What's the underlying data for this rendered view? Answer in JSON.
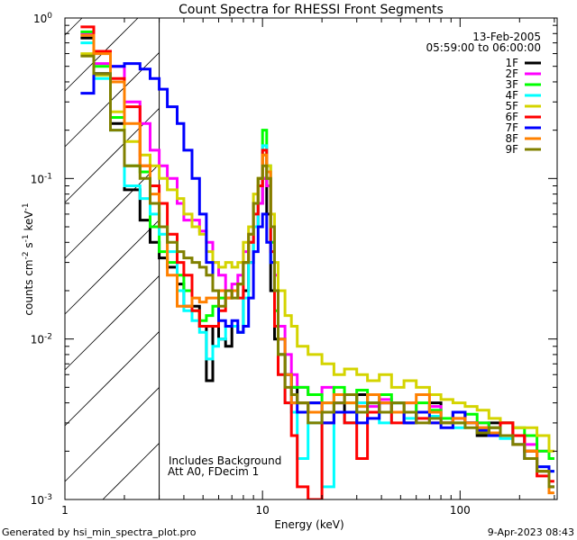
{
  "chart_data": {
    "type": "line",
    "title": "Count Spectra for RHESSI Front Segments",
    "xlabel": "Energy (keV)",
    "ylabel": {
      "base": "counts cm",
      "exp1": "-2",
      "mid1": " s",
      "exp2": "-1",
      "mid2": " keV",
      "exp3": "-1"
    },
    "xscale": "log",
    "yscale": "log",
    "xlim": [
      1,
      310
    ],
    "ylim": [
      0.001,
      1
    ],
    "x_ticks": [
      {
        "value": 1,
        "label": "1"
      },
      {
        "value": 10,
        "label": "10"
      },
      {
        "value": 100,
        "label": "100"
      }
    ],
    "y_ticks": [
      {
        "value": 1,
        "base": "10",
        "exp": "0"
      },
      {
        "value": 0.1,
        "base": "10",
        "exp": "-1"
      },
      {
        "value": 0.01,
        "base": "10",
        "exp": "-2"
      },
      {
        "value": 0.001,
        "base": "10",
        "exp": "-3"
      }
    ],
    "excluded_region_max_kev": 3,
    "date": "13-Feb-2005",
    "time_range": "05:59:00 to 06:00:00",
    "annotations": [
      "Includes Background",
      "Att A0, FDecim 1"
    ],
    "legend_position": "top-right",
    "bin_edges": [
      1.2,
      1.4,
      1.7,
      2.0,
      2.4,
      2.7,
      3.0,
      3.3,
      3.7,
      4.0,
      4.4,
      4.8,
      5.2,
      5.6,
      6.0,
      6.5,
      7.0,
      7.5,
      8.0,
      8.5,
      9.0,
      9.5,
      10.0,
      10.5,
      11.0,
      11.5,
      12.0,
      13,
      14,
      15,
      17,
      20,
      23,
      26,
      30,
      34,
      39,
      45,
      52,
      60,
      70,
      80,
      92,
      106,
      122,
      140,
      160,
      185,
      212,
      245,
      282,
      300
    ],
    "series": [
      {
        "name": "1F",
        "color": "#000000",
        "values": [
          0.75,
          0.45,
          0.22,
          0.085,
          0.055,
          0.04,
          0.032,
          0.028,
          0.022,
          0.016,
          0.016,
          0.012,
          0.0055,
          0.012,
          0.01,
          0.009,
          0.012,
          0.011,
          0.02,
          0.03,
          0.05,
          0.07,
          0.1,
          0.06,
          0.02,
          0.01,
          0.008,
          0.006,
          0.005,
          0.004,
          0.004,
          0.0035,
          0.004,
          0.003,
          0.0045,
          0.004,
          0.0035,
          0.004,
          0.003,
          0.0035,
          0.004,
          0.003,
          0.0035,
          0.003,
          0.0025,
          0.003,
          0.003,
          0.0025,
          0.002,
          0.0015,
          0.0012
        ]
      },
      {
        "name": "2F",
        "color": "#ff00ff",
        "values": [
          0.8,
          0.52,
          0.5,
          0.3,
          0.22,
          0.15,
          0.12,
          0.1,
          0.07,
          0.055,
          0.055,
          0.047,
          0.04,
          0.03,
          0.025,
          0.02,
          0.022,
          0.025,
          0.035,
          0.04,
          0.05,
          0.07,
          0.1,
          0.09,
          0.05,
          0.025,
          0.012,
          0.008,
          0.006,
          0.005,
          0.0045,
          0.005,
          0.004,
          0.0045,
          0.004,
          0.0038,
          0.0042,
          0.0035,
          0.004,
          0.0035,
          0.0038,
          0.003,
          0.0032,
          0.003,
          0.003,
          0.0028,
          0.003,
          0.0025,
          0.0022,
          0.002,
          0.0018
        ]
      },
      {
        "name": "3F",
        "color": "#00ff00",
        "values": [
          0.82,
          0.5,
          0.24,
          0.12,
          0.11,
          0.05,
          0.035,
          0.03,
          0.025,
          0.02,
          0.015,
          0.013,
          0.014,
          0.016,
          0.018,
          0.02,
          0.02,
          0.022,
          0.03,
          0.04,
          0.07,
          0.1,
          0.2,
          0.12,
          0.04,
          0.015,
          0.008,
          0.006,
          0.005,
          0.005,
          0.0045,
          0.004,
          0.005,
          0.004,
          0.0048,
          0.004,
          0.0045,
          0.004,
          0.0035,
          0.004,
          0.0036,
          0.0032,
          0.003,
          0.0034,
          0.003,
          0.0028,
          0.003,
          0.0028,
          0.0025,
          0.002,
          0.0018
        ]
      },
      {
        "name": "4F",
        "color": "#00ffff",
        "values": [
          0.7,
          0.42,
          0.2,
          0.09,
          0.075,
          0.06,
          0.045,
          0.035,
          0.02,
          0.015,
          0.013,
          0.011,
          0.0075,
          0.009,
          0.01,
          0.012,
          0.012,
          0.011,
          0.018,
          0.03,
          0.05,
          0.1,
          0.16,
          0.1,
          0.03,
          0.012,
          0.006,
          0.004,
          0.0035,
          0.0018,
          0.003,
          0.0012,
          0.0035,
          0.003,
          0.004,
          0.0035,
          0.003,
          0.004,
          0.0032,
          0.0035,
          0.0033,
          0.003,
          0.0028,
          0.003,
          0.0027,
          0.0025,
          0.0024,
          0.0022,
          0.0018,
          0.0016,
          0.0015
        ]
      },
      {
        "name": "5F",
        "color": "#d4d400",
        "values": [
          0.6,
          0.44,
          0.26,
          0.17,
          0.14,
          0.12,
          0.1,
          0.085,
          0.075,
          0.06,
          0.05,
          0.045,
          0.035,
          0.03,
          0.028,
          0.03,
          0.028,
          0.03,
          0.04,
          0.05,
          0.08,
          0.1,
          0.14,
          0.12,
          0.06,
          0.03,
          0.02,
          0.014,
          0.012,
          0.009,
          0.008,
          0.007,
          0.006,
          0.0065,
          0.006,
          0.0055,
          0.006,
          0.005,
          0.0055,
          0.005,
          0.0045,
          0.0042,
          0.004,
          0.0038,
          0.0036,
          0.0032,
          0.003,
          0.0028,
          0.0028,
          0.0025,
          0.002
        ]
      },
      {
        "name": "6F",
        "color": "#ff0000",
        "values": [
          0.88,
          0.62,
          0.42,
          0.28,
          0.12,
          0.09,
          0.07,
          0.045,
          0.03,
          0.025,
          0.015,
          0.012,
          0.012,
          0.012,
          0.015,
          0.018,
          0.02,
          0.018,
          0.03,
          0.04,
          0.06,
          0.09,
          0.15,
          0.1,
          0.035,
          0.012,
          0.006,
          0.004,
          0.0025,
          0.0012,
          0.0008,
          0.003,
          0.0035,
          0.003,
          0.0018,
          0.0035,
          0.004,
          0.003,
          0.0035,
          0.0032,
          0.003,
          0.003,
          0.0035,
          0.003,
          0.0028,
          0.0026,
          0.003,
          0.0025,
          0.002,
          0.0014,
          0.0013
        ]
      },
      {
        "name": "7F",
        "color": "#0000ff",
        "values": [
          0.34,
          0.45,
          0.5,
          0.52,
          0.48,
          0.42,
          0.36,
          0.28,
          0.22,
          0.15,
          0.1,
          0.06,
          0.03,
          0.02,
          0.013,
          0.012,
          0.013,
          0.011,
          0.012,
          0.018,
          0.035,
          0.05,
          0.06,
          0.04,
          0.03,
          0.02,
          0.01,
          0.006,
          0.004,
          0.0035,
          0.004,
          0.003,
          0.0035,
          0.0035,
          0.003,
          0.0032,
          0.004,
          0.0035,
          0.003,
          0.0035,
          0.003,
          0.0028,
          0.0035,
          0.003,
          0.0027,
          0.0025,
          0.0025,
          0.0022,
          0.0018,
          0.0016,
          0.0015
        ]
      },
      {
        "name": "8F",
        "color": "#ff8000",
        "values": [
          0.78,
          0.6,
          0.4,
          0.22,
          0.12,
          0.08,
          0.05,
          0.025,
          0.016,
          0.016,
          0.018,
          0.017,
          0.018,
          0.018,
          0.02,
          0.018,
          0.02,
          0.022,
          0.03,
          0.045,
          0.07,
          0.1,
          0.14,
          0.11,
          0.05,
          0.02,
          0.01,
          0.006,
          0.004,
          0.004,
          0.0035,
          0.004,
          0.0045,
          0.004,
          0.0038,
          0.0045,
          0.004,
          0.0035,
          0.004,
          0.0045,
          0.0035,
          0.003,
          0.0032,
          0.003,
          0.0028,
          0.0026,
          0.0025,
          0.0022,
          0.002,
          0.0015,
          0.0011
        ]
      },
      {
        "name": "9F",
        "color": "#808000",
        "values": [
          0.58,
          0.45,
          0.2,
          0.12,
          0.1,
          0.07,
          0.05,
          0.04,
          0.035,
          0.032,
          0.03,
          0.028,
          0.025,
          0.02,
          0.016,
          0.02,
          0.018,
          0.022,
          0.03,
          0.045,
          0.07,
          0.1,
          0.12,
          0.1,
          0.05,
          0.02,
          0.008,
          0.005,
          0.0045,
          0.004,
          0.003,
          0.0035,
          0.004,
          0.0045,
          0.0035,
          0.004,
          0.0035,
          0.004,
          0.0035,
          0.003,
          0.0032,
          0.003,
          0.003,
          0.0028,
          0.0026,
          0.0028,
          0.0025,
          0.0022,
          0.0018,
          0.0015,
          0.0012
        ]
      }
    ]
  },
  "footer": {
    "generated_by": "Generated by hsi_min_spectra_plot.pro",
    "timestamp": "9-Apr-2023 08:43"
  }
}
